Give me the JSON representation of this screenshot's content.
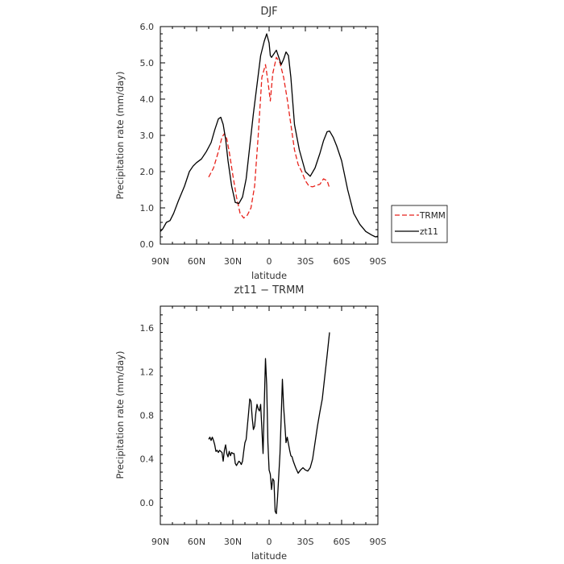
{
  "chart_data": [
    {
      "type": "line",
      "title": "DJF",
      "xlabel": "latitude",
      "ylabel": "Precipitation rate (mm/day)",
      "xlim": [
        90,
        -90
      ],
      "ylim": [
        0.0,
        6.0
      ],
      "x_ticks": [
        90,
        60,
        30,
        0,
        -30,
        -60,
        -90
      ],
      "x_tick_labels": [
        "90N",
        "60N",
        "30N",
        "0",
        "30S",
        "60S",
        "90S"
      ],
      "y_ticks": [
        0.0,
        1.0,
        2.0,
        3.0,
        4.0,
        5.0,
        6.0
      ],
      "y_tick_labels": [
        "0.0",
        "1.0",
        "2.0",
        "3.0",
        "4.0",
        "5.0",
        "6.0"
      ],
      "legend_position": "right, outside plot",
      "series": [
        {
          "name": "TRMM",
          "color": "#e8221b",
          "style": "dashed",
          "x": [
            50,
            46,
            42,
            39,
            37,
            35,
            33,
            30,
            27,
            24,
            21,
            18,
            15,
            12,
            9,
            6,
            3,
            1,
            -1,
            -3,
            -6,
            -9,
            -12,
            -15,
            -18,
            -21,
            -24,
            -27,
            -30,
            -33,
            -36,
            -39,
            -42,
            -45,
            -48,
            -50
          ],
          "y": [
            1.85,
            2.1,
            2.55,
            2.95,
            3.05,
            2.9,
            2.55,
            1.9,
            1.3,
            0.85,
            0.72,
            0.8,
            1.0,
            1.6,
            3.0,
            4.6,
            4.95,
            4.5,
            3.95,
            4.7,
            5.15,
            5.0,
            4.6,
            4.0,
            3.3,
            2.6,
            2.2,
            2.0,
            1.75,
            1.6,
            1.58,
            1.62,
            1.65,
            1.8,
            1.75,
            1.55
          ]
        },
        {
          "name": "zt11",
          "color": "#000000",
          "style": "solid",
          "x": [
            90,
            88,
            85,
            82,
            79,
            75,
            70,
            66,
            63,
            60,
            56,
            52,
            48,
            45,
            42,
            40,
            38,
            36,
            34,
            31,
            28,
            25,
            22,
            19,
            16,
            13,
            10,
            7,
            4,
            2,
            0,
            -1,
            -2,
            -4,
            -6,
            -8,
            -10,
            -12,
            -14,
            -16,
            -18,
            -21,
            -25,
            -30,
            -34,
            -38,
            -42,
            -45,
            -48,
            -50,
            -53,
            -56,
            -60,
            -65,
            -70,
            -75,
            -80,
            -85,
            -88,
            -90
          ],
          "y": [
            0.35,
            0.42,
            0.6,
            0.65,
            0.85,
            1.2,
            1.6,
            2.0,
            2.15,
            2.25,
            2.35,
            2.55,
            2.8,
            3.15,
            3.45,
            3.5,
            3.3,
            2.9,
            2.3,
            1.6,
            1.15,
            1.12,
            1.3,
            1.8,
            2.7,
            3.6,
            4.4,
            5.2,
            5.6,
            5.8,
            5.55,
            5.2,
            5.15,
            5.25,
            5.35,
            5.15,
            4.95,
            5.1,
            5.3,
            5.2,
            4.6,
            3.3,
            2.6,
            2.0,
            1.87,
            2.1,
            2.5,
            2.85,
            3.1,
            3.12,
            2.95,
            2.7,
            2.3,
            1.5,
            0.85,
            0.55,
            0.35,
            0.25,
            0.2,
            0.22
          ]
        }
      ]
    },
    {
      "type": "line",
      "title": "zt11 − TRMM",
      "xlabel": "latitude",
      "ylabel": "Precipitation rate (mm/day)",
      "xlim": [
        90,
        -90
      ],
      "ylim": [
        -0.2,
        1.8
      ],
      "x_ticks": [
        90,
        60,
        30,
        0,
        -30,
        -60,
        -90
      ],
      "x_tick_labels": [
        "90N",
        "60N",
        "30N",
        "0",
        "30S",
        "60S",
        "90S"
      ],
      "y_ticks": [
        0.0,
        0.4,
        0.8,
        1.2,
        1.6
      ],
      "y_tick_labels": [
        "0.0",
        "0.4",
        "0.8",
        "1.2",
        "1.6"
      ],
      "series": [
        {
          "name": "",
          "color": "#000000",
          "style": "solid",
          "x": [
            50,
            49,
            48,
            47,
            46,
            45,
            44,
            43,
            42,
            41,
            40,
            39,
            38,
            37,
            36,
            35,
            34,
            33,
            32,
            31,
            30,
            29,
            28,
            27,
            26,
            25,
            24,
            23,
            22,
            21,
            20,
            19,
            18,
            17,
            16,
            15,
            14,
            13,
            12,
            11,
            10,
            9,
            8,
            7,
            6,
            5,
            4,
            3,
            2,
            1,
            0,
            -1,
            -2,
            -3,
            -4,
            -5,
            -6,
            -7,
            -8,
            -9,
            -10,
            -11,
            -12,
            -13,
            -14,
            -15,
            -16,
            -17,
            -18,
            -19,
            -20,
            -21,
            -22,
            -24,
            -26,
            -28,
            -30,
            -32,
            -34,
            -36,
            -38,
            -40,
            -42,
            -44,
            -46,
            -48,
            -50
          ],
          "y": [
            0.58,
            0.6,
            0.57,
            0.6,
            0.57,
            0.53,
            0.47,
            0.48,
            0.46,
            0.48,
            0.47,
            0.46,
            0.38,
            0.48,
            0.53,
            0.45,
            0.42,
            0.47,
            0.43,
            0.46,
            0.45,
            0.45,
            0.36,
            0.34,
            0.36,
            0.38,
            0.37,
            0.35,
            0.38,
            0.47,
            0.55,
            0.58,
            0.7,
            0.82,
            0.95,
            0.93,
            0.78,
            0.67,
            0.7,
            0.82,
            0.9,
            0.86,
            0.84,
            0.9,
            0.68,
            0.45,
            0.9,
            1.32,
            1.08,
            0.55,
            0.3,
            0.26,
            0.12,
            0.22,
            0.2,
            -0.08,
            -0.1,
            0.05,
            0.25,
            0.45,
            0.78,
            1.13,
            0.88,
            0.72,
            0.55,
            0.6,
            0.54,
            0.48,
            0.43,
            0.42,
            0.38,
            0.35,
            0.32,
            0.27,
            0.3,
            0.32,
            0.3,
            0.29,
            0.32,
            0.4,
            0.55,
            0.7,
            0.83,
            0.95,
            1.15,
            1.35,
            1.56
          ]
        }
      ]
    }
  ]
}
